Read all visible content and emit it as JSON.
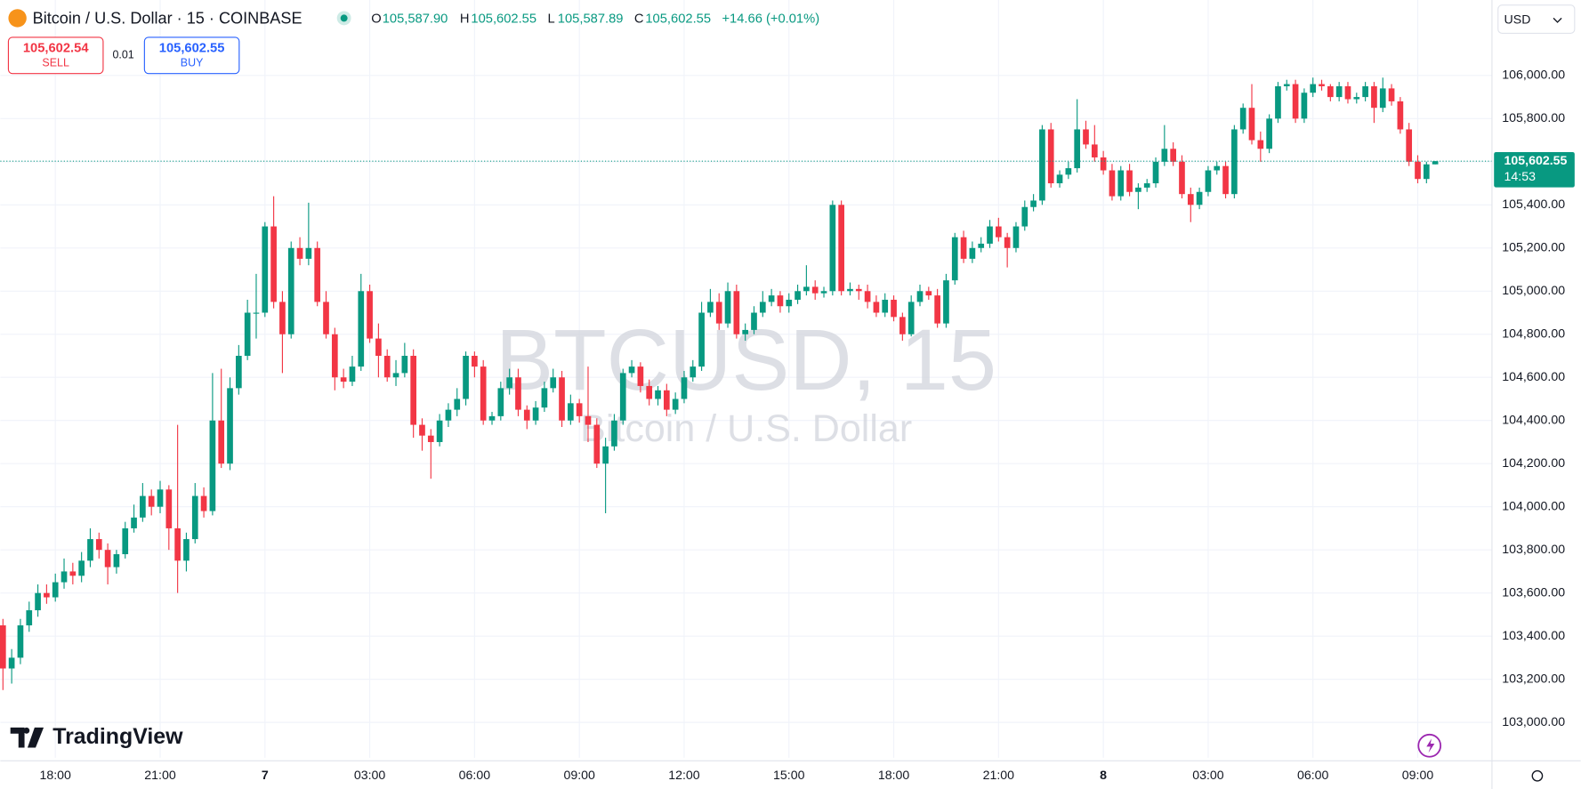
{
  "header": {
    "symbol": "Bitcoin / U.S. Dollar · 15 · COINBASE",
    "o_label": "O",
    "o": "105,587.90",
    "h_label": "H",
    "h": "105,602.55",
    "l_label": "L",
    "l": "105,587.89",
    "c_label": "C",
    "c": "105,602.55",
    "change": "+14.66 (+0.01%)",
    "currency": "USD"
  },
  "trade": {
    "sell_price": "105,602.54",
    "sell": "SELL",
    "spread": "0.01",
    "buy_price": "105,602.55",
    "buy": "BUY"
  },
  "watermark": {
    "line1": "BTCUSD, 15",
    "line2": "Bitcoin / U.S. Dollar"
  },
  "logo": "TradingView",
  "chart_data": {
    "type": "candlestick",
    "up_color": "#089981",
    "down_color": "#f23645",
    "grid": true,
    "last_price": 105602.55,
    "last_price_label": "105,602.55",
    "countdown": "14:53",
    "xlim": [
      -0.3,
      170.5
    ],
    "xticks": [
      {
        "value": 6,
        "label": "18:00"
      },
      {
        "value": 18,
        "label": "21:00"
      },
      {
        "value": 30,
        "label": "7"
      },
      {
        "value": 42,
        "label": "03:00"
      },
      {
        "value": 54,
        "label": "06:00"
      },
      {
        "value": 66,
        "label": "09:00"
      },
      {
        "value": 78,
        "label": "12:00"
      },
      {
        "value": 90,
        "label": "15:00"
      },
      {
        "value": 102,
        "label": "18:00"
      },
      {
        "value": 114,
        "label": "21:00"
      },
      {
        "value": 126,
        "label": "8"
      },
      {
        "value": 138,
        "label": "03:00"
      },
      {
        "value": 150,
        "label": "06:00"
      },
      {
        "value": 162,
        "label": "09:00"
      }
    ],
    "ylim": [
      102836,
      106350
    ],
    "yticks": [
      {
        "value": 103000,
        "label": "103,000.00"
      },
      {
        "value": 103200,
        "label": "103,200.00"
      },
      {
        "value": 103400,
        "label": "103,400.00"
      },
      {
        "value": 103600,
        "label": "103,600.00"
      },
      {
        "value": 103800,
        "label": "103,800.00"
      },
      {
        "value": 104000,
        "label": "104,000.00"
      },
      {
        "value": 104200,
        "label": "104,200.00"
      },
      {
        "value": 104400,
        "label": "104,400.00"
      },
      {
        "value": 104600,
        "label": "104,600.00"
      },
      {
        "value": 104800,
        "label": "104,800.00"
      },
      {
        "value": 105000,
        "label": "105,000.00"
      },
      {
        "value": 105200,
        "label": "105,200.00"
      },
      {
        "value": 105400,
        "label": "105,400.00"
      },
      {
        "value": 105600,
        "label": "105,600.00"
      },
      {
        "value": 105800,
        "label": "105,800.00"
      },
      {
        "value": 106000,
        "label": "106,000.00"
      }
    ],
    "ohlc": [
      [
        103450,
        103480,
        103150,
        103250
      ],
      [
        103250,
        103340,
        103180,
        103300
      ],
      [
        103300,
        103480,
        103270,
        103450
      ],
      [
        103450,
        103560,
        103420,
        103520
      ],
      [
        103520,
        103640,
        103490,
        103600
      ],
      [
        103600,
        103640,
        103550,
        103580
      ],
      [
        103580,
        103690,
        103560,
        103650
      ],
      [
        103650,
        103760,
        103620,
        103700
      ],
      [
        103700,
        103740,
        103640,
        103680
      ],
      [
        103680,
        103790,
        103650,
        103750
      ],
      [
        103750,
        103900,
        103720,
        103850
      ],
      [
        103850,
        103880,
        103760,
        103800
      ],
      [
        103800,
        103830,
        103640,
        103720
      ],
      [
        103720,
        103800,
        103690,
        103780
      ],
      [
        103780,
        103930,
        103760,
        103900
      ],
      [
        103900,
        104010,
        103880,
        103950
      ],
      [
        103950,
        104110,
        103930,
        104050
      ],
      [
        104050,
        104080,
        103960,
        104000
      ],
      [
        104000,
        104120,
        103970,
        104080
      ],
      [
        104080,
        104100,
        103800,
        103900
      ],
      [
        103900,
        104380,
        103600,
        103750
      ],
      [
        103750,
        103880,
        103700,
        103850
      ],
      [
        103850,
        104110,
        103830,
        104050
      ],
      [
        104050,
        104090,
        103950,
        103980
      ],
      [
        103980,
        104620,
        103960,
        104400
      ],
      [
        104400,
        104640,
        104180,
        104200
      ],
      [
        104200,
        104600,
        104170,
        104550
      ],
      [
        104550,
        104750,
        104520,
        104700
      ],
      [
        104700,
        104960,
        104680,
        104900
      ],
      [
        104900,
        105080,
        104780,
        104900
      ],
      [
        104900,
        105320,
        104880,
        105300
      ],
      [
        105300,
        105440,
        104920,
        104950
      ],
      [
        104950,
        105000,
        104620,
        104800
      ],
      [
        104800,
        105230,
        104780,
        105200
      ],
      [
        105200,
        105250,
        105120,
        105150
      ],
      [
        105150,
        105410,
        105120,
        105200
      ],
      [
        105200,
        105230,
        104930,
        104950
      ],
      [
        104950,
        105000,
        104780,
        104800
      ],
      [
        104800,
        104830,
        104540,
        104600
      ],
      [
        104600,
        104640,
        104550,
        104580
      ],
      [
        104580,
        104700,
        104560,
        104650
      ],
      [
        104650,
        105080,
        104630,
        105000
      ],
      [
        105000,
        105030,
        104760,
        104780
      ],
      [
        104780,
        104850,
        104600,
        104700
      ],
      [
        104700,
        104730,
        104580,
        104600
      ],
      [
        104600,
        104680,
        104560,
        104620
      ],
      [
        104620,
        104760,
        104600,
        104700
      ],
      [
        104700,
        104730,
        104320,
        104380
      ],
      [
        104380,
        104410,
        104260,
        104330
      ],
      [
        104330,
        104360,
        104130,
        104300
      ],
      [
        104300,
        104430,
        104280,
        104400
      ],
      [
        104400,
        104480,
        104370,
        104450
      ],
      [
        104450,
        104550,
        104420,
        104500
      ],
      [
        104500,
        104720,
        104470,
        104700
      ],
      [
        104700,
        104720,
        104600,
        104650
      ],
      [
        104650,
        104680,
        104380,
        104400
      ],
      [
        104400,
        104440,
        104380,
        104420
      ],
      [
        104420,
        104580,
        104400,
        104550
      ],
      [
        104550,
        104640,
        104520,
        104600
      ],
      [
        104600,
        104640,
        104420,
        104450
      ],
      [
        104450,
        104470,
        104360,
        104400
      ],
      [
        104400,
        104490,
        104380,
        104460
      ],
      [
        104460,
        104580,
        104440,
        104550
      ],
      [
        104550,
        104640,
        104530,
        104600
      ],
      [
        104600,
        104630,
        104370,
        104400
      ],
      [
        104400,
        104520,
        104380,
        104480
      ],
      [
        104480,
        104500,
        104390,
        104420
      ],
      [
        104420,
        104650,
        104300,
        104380
      ],
      [
        104380,
        104410,
        104180,
        104200
      ],
      [
        104200,
        104320,
        103970,
        104280
      ],
      [
        104280,
        104430,
        104260,
        104400
      ],
      [
        104400,
        104640,
        104380,
        104620
      ],
      [
        104620,
        104680,
        104600,
        104650
      ],
      [
        104650,
        104670,
        104530,
        104560
      ],
      [
        104560,
        104590,
        104470,
        104500
      ],
      [
        104500,
        104560,
        104470,
        104540
      ],
      [
        104540,
        104570,
        104420,
        104450
      ],
      [
        104450,
        104530,
        104430,
        104500
      ],
      [
        104500,
        104630,
        104480,
        104600
      ],
      [
        104600,
        104680,
        104580,
        104650
      ],
      [
        104650,
        104950,
        104630,
        104900
      ],
      [
        104900,
        105010,
        104880,
        104950
      ],
      [
        104950,
        104990,
        104820,
        104850
      ],
      [
        104850,
        105040,
        104830,
        105000
      ],
      [
        105000,
        105030,
        104780,
        104800
      ],
      [
        104800,
        104850,
        104770,
        104820
      ],
      [
        104820,
        104930,
        104800,
        104900
      ],
      [
        104900,
        105000,
        104880,
        104950
      ],
      [
        104950,
        105010,
        104930,
        104980
      ],
      [
        104980,
        105000,
        104900,
        104930
      ],
      [
        104930,
        104990,
        104900,
        104960
      ],
      [
        104960,
        105030,
        104940,
        105000
      ],
      [
        105000,
        105120,
        104980,
        105020
      ],
      [
        105020,
        105050,
        104960,
        104990
      ],
      [
        104990,
        105020,
        104970,
        105000
      ],
      [
        105000,
        105420,
        104980,
        105400
      ],
      [
        105400,
        105420,
        104980,
        105000
      ],
      [
        105000,
        105040,
        104980,
        105010
      ],
      [
        105010,
        105030,
        104960,
        105000
      ],
      [
        105000,
        105030,
        104920,
        104950
      ],
      [
        104950,
        104980,
        104880,
        104900
      ],
      [
        104900,
        104990,
        104880,
        104960
      ],
      [
        104960,
        104980,
        104860,
        104880
      ],
      [
        104880,
        104900,
        104770,
        104800
      ],
      [
        104800,
        104980,
        104790,
        104950
      ],
      [
        104950,
        105030,
        104930,
        105000
      ],
      [
        105000,
        105020,
        104960,
        104980
      ],
      [
        104980,
        105010,
        104830,
        104850
      ],
      [
        104850,
        105080,
        104830,
        105050
      ],
      [
        105050,
        105270,
        105030,
        105250
      ],
      [
        105250,
        105280,
        105130,
        105150
      ],
      [
        105150,
        105230,
        105130,
        105200
      ],
      [
        105200,
        105250,
        105180,
        105220
      ],
      [
        105220,
        105330,
        105200,
        105300
      ],
      [
        105300,
        105340,
        105230,
        105250
      ],
      [
        105250,
        105270,
        105110,
        105200
      ],
      [
        105200,
        105320,
        105180,
        105300
      ],
      [
        105300,
        105420,
        105280,
        105390
      ],
      [
        105390,
        105450,
        105370,
        105420
      ],
      [
        105420,
        105770,
        105400,
        105750
      ],
      [
        105750,
        105780,
        105480,
        105500
      ],
      [
        105500,
        105560,
        105480,
        105540
      ],
      [
        105540,
        105600,
        105520,
        105570
      ],
      [
        105570,
        105890,
        105550,
        105750
      ],
      [
        105750,
        105790,
        105660,
        105680
      ],
      [
        105680,
        105770,
        105600,
        105620
      ],
      [
        105620,
        105650,
        105540,
        105560
      ],
      [
        105560,
        105590,
        105420,
        105440
      ],
      [
        105440,
        105580,
        105420,
        105560
      ],
      [
        105560,
        105590,
        105440,
        105460
      ],
      [
        105460,
        105500,
        105380,
        105480
      ],
      [
        105480,
        105520,
        105460,
        105500
      ],
      [
        105500,
        105620,
        105480,
        105600
      ],
      [
        105600,
        105770,
        105580,
        105660
      ],
      [
        105660,
        105690,
        105580,
        105600
      ],
      [
        105600,
        105630,
        105430,
        105450
      ],
      [
        105450,
        105480,
        105320,
        105400
      ],
      [
        105400,
        105480,
        105380,
        105460
      ],
      [
        105460,
        105580,
        105440,
        105560
      ],
      [
        105560,
        105600,
        105540,
        105580
      ],
      [
        105580,
        105600,
        105430,
        105450
      ],
      [
        105450,
        105770,
        105430,
        105750
      ],
      [
        105750,
        105870,
        105730,
        105850
      ],
      [
        105850,
        105960,
        105680,
        105700
      ],
      [
        105700,
        105740,
        105600,
        105660
      ],
      [
        105660,
        105820,
        105640,
        105800
      ],
      [
        105800,
        105970,
        105780,
        105950
      ],
      [
        105950,
        105980,
        105930,
        105960
      ],
      [
        105960,
        105980,
        105780,
        105800
      ],
      [
        105800,
        105940,
        105780,
        105920
      ],
      [
        105920,
        105990,
        105900,
        105960
      ],
      [
        105960,
        105980,
        105930,
        105950
      ],
      [
        105950,
        105960,
        105880,
        105900
      ],
      [
        105900,
        105970,
        105880,
        105950
      ],
      [
        105950,
        105970,
        105870,
        105890
      ],
      [
        105890,
        105920,
        105870,
        105900
      ],
      [
        105900,
        105970,
        105880,
        105950
      ],
      [
        105950,
        105970,
        105780,
        105850
      ],
      [
        105850,
        105990,
        105830,
        105940
      ],
      [
        105940,
        105960,
        105860,
        105880
      ],
      [
        105880,
        105900,
        105730,
        105750
      ],
      [
        105750,
        105780,
        105580,
        105600
      ],
      [
        105600,
        105630,
        105500,
        105520
      ],
      [
        105520,
        105600,
        105500,
        105587.9
      ],
      [
        105587.9,
        105602.55,
        105587.89,
        105602.55
      ]
    ]
  }
}
